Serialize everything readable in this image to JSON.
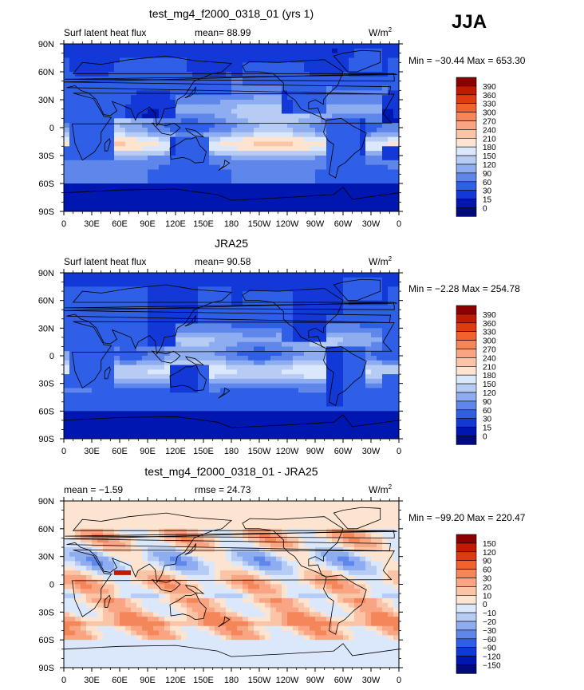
{
  "season": "JJA",
  "chart_data": [
    {
      "type": "heatmap",
      "title": "test_mg4_f2000_0318_01 (yrs 1)",
      "left_label": "Surf latent heat flux",
      "center_label": "mean=   88.99",
      "units": "W/m",
      "units_exp": "2",
      "minmax": "Min = −30.44 Max = 653.30",
      "xticks": [
        "0",
        "30E",
        "60E",
        "90E",
        "120E",
        "150E",
        "180",
        "150W",
        "120W",
        "90W",
        "60W",
        "30W",
        "0"
      ],
      "yticks": [
        "90N",
        "60N",
        "30N",
        "0",
        "30S",
        "60S",
        "90S"
      ],
      "xlim": [
        0,
        360
      ],
      "ylim": [
        -90,
        90
      ],
      "levels": [
        "390",
        "360",
        "330",
        "300",
        "270",
        "240",
        "210",
        "180",
        "150",
        "120",
        "90",
        "60",
        "30",
        "15",
        "0"
      ],
      "colors": [
        "#8c0000",
        "#c21a00",
        "#e03b10",
        "#f2622c",
        "#f5865a",
        "#f9a482",
        "#fbc4a6",
        "#fde4d0",
        "#dbe7fa",
        "#b7ccf5",
        "#8eacf0",
        "#5f86ea",
        "#2f5fe6",
        "#1238d8",
        "#0016b0",
        "#000a7a"
      ],
      "field": "model"
    },
    {
      "type": "heatmap",
      "title": "JRA25",
      "left_label": "Surf latent heat flux",
      "center_label": "mean=   90.58",
      "units": "W/m",
      "units_exp": "2",
      "minmax": "Min =   −2.28 Max = 254.78",
      "xticks": [
        "0",
        "30E",
        "60E",
        "90E",
        "120E",
        "150E",
        "180",
        "150W",
        "120W",
        "90W",
        "60W",
        "30W",
        "0"
      ],
      "yticks": [
        "90N",
        "60N",
        "30N",
        "0",
        "30S",
        "60S",
        "90S"
      ],
      "xlim": [
        0,
        360
      ],
      "ylim": [
        -90,
        90
      ],
      "levels": [
        "390",
        "360",
        "330",
        "300",
        "270",
        "240",
        "210",
        "180",
        "150",
        "120",
        "90",
        "60",
        "30",
        "15",
        "0"
      ],
      "colors": [
        "#8c0000",
        "#c21a00",
        "#e03b10",
        "#f2622c",
        "#f5865a",
        "#f9a482",
        "#fbc4a6",
        "#fde4d0",
        "#dbe7fa",
        "#b7ccf5",
        "#8eacf0",
        "#5f86ea",
        "#2f5fe6",
        "#1238d8",
        "#0016b0",
        "#000a7a"
      ],
      "field": "obs"
    },
    {
      "type": "heatmap",
      "title": "test_mg4_f2000_0318_01 - JRA25",
      "left_label": "mean =   −1.59",
      "center_label": "rmse =   24.73",
      "units": "W/m",
      "units_exp": "2",
      "minmax": "Min = −99.20 Max = 220.47",
      "xticks": [
        "0",
        "30E",
        "60E",
        "90E",
        "120E",
        "150E",
        "180",
        "150W",
        "120W",
        "90W",
        "60W",
        "30W",
        "0"
      ],
      "yticks": [
        "90N",
        "60N",
        "30N",
        "0",
        "30S",
        "60S",
        "90S"
      ],
      "xlim": [
        0,
        360
      ],
      "ylim": [
        -90,
        90
      ],
      "levels": [
        "150",
        "120",
        "90",
        "60",
        "30",
        "20",
        "10",
        "0",
        "−10",
        "−20",
        "−30",
        "−60",
        "−90",
        "−120",
        "−150"
      ],
      "colors": [
        "#8c0000",
        "#c21a00",
        "#e03b10",
        "#f2622c",
        "#f5865a",
        "#f9a482",
        "#fbc4a6",
        "#fde4d0",
        "#dbe7fa",
        "#b7ccf5",
        "#8eacf0",
        "#5f86ea",
        "#2f5fe6",
        "#1238d8",
        "#0016b0",
        "#000a7a"
      ],
      "field": "diff"
    }
  ]
}
